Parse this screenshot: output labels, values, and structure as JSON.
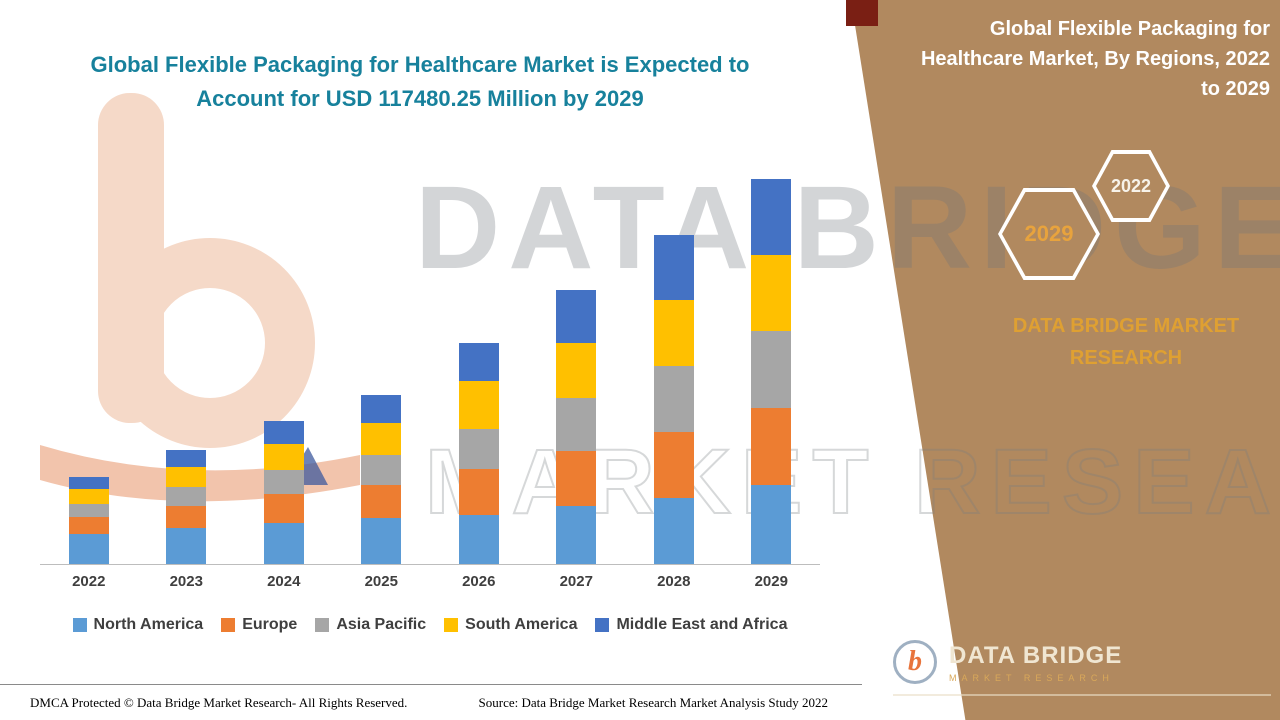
{
  "main": {
    "title": "Global Flexible Packaging for Healthcare Market is Expected to Account for USD 117480.25 Million by 2029"
  },
  "side_panel": {
    "title": "Global Flexible Packaging for Healthcare Market, By Regions, 2022 to 2029",
    "badge_2029": "2029",
    "badge_2022": "2022",
    "caption": "DATA BRIDGE MARKET RESEARCH",
    "panel_color": "#B1895F",
    "accent_gold": "#DFA032"
  },
  "watermark": {
    "line1": "DATA BRIDGE",
    "line2": "MARKET RESEARCH"
  },
  "brand": {
    "mark_letter": "b",
    "name": "DATA BRIDGE",
    "tagline": "MARKET RESEARCH"
  },
  "footer": {
    "dmca": "DMCA Protected © Data Bridge Market Research- All Rights Reserved.",
    "source": "Source: Data Bridge Market Research Market Analysis Study 2022"
  },
  "chart_data": {
    "type": "bar",
    "stacked": true,
    "title": "Global Flexible Packaging for Healthcare Market is Expected to Account for USD 117480.25 Million by 2029",
    "value_unit": "USD Million",
    "categories": [
      "2022",
      "2023",
      "2024",
      "2025",
      "2026",
      "2027",
      "2028",
      "2029"
    ],
    "series": [
      {
        "name": "North America",
        "color": "#5B9BD5",
        "values": [
          9200,
          10900,
          12600,
          13900,
          15000,
          17800,
          20240,
          24230
        ]
      },
      {
        "name": "Europe",
        "color": "#ED7D31",
        "values": [
          5200,
          6900,
          8700,
          10300,
          14100,
          16560,
          19940,
          23310
        ]
      },
      {
        "name": "Asia Pacific",
        "color": "#A6A6A6",
        "values": [
          4000,
          5600,
          7400,
          9100,
          12250,
          16260,
          20240,
          23620
        ]
      },
      {
        "name": "South America",
        "color": "#FFC000",
        "values": [
          4600,
          6200,
          8000,
          9800,
          14400,
          16860,
          20240,
          23000
        ]
      },
      {
        "name": "Middle East and Africa",
        "color": "#4472C4",
        "values": [
          3700,
          5100,
          6800,
          8400,
          11650,
          16250,
          19940,
          23320.25
        ]
      }
    ],
    "totals": [
      26700,
      34700,
      43500,
      51500,
      67400,
      83730,
      100600,
      117480.25
    ],
    "xlabel": "",
    "ylabel": "",
    "ylim": [
      0,
      117480.25
    ],
    "grid": false,
    "y_axis_ticks_visible": false,
    "legend_position": "bottom"
  }
}
